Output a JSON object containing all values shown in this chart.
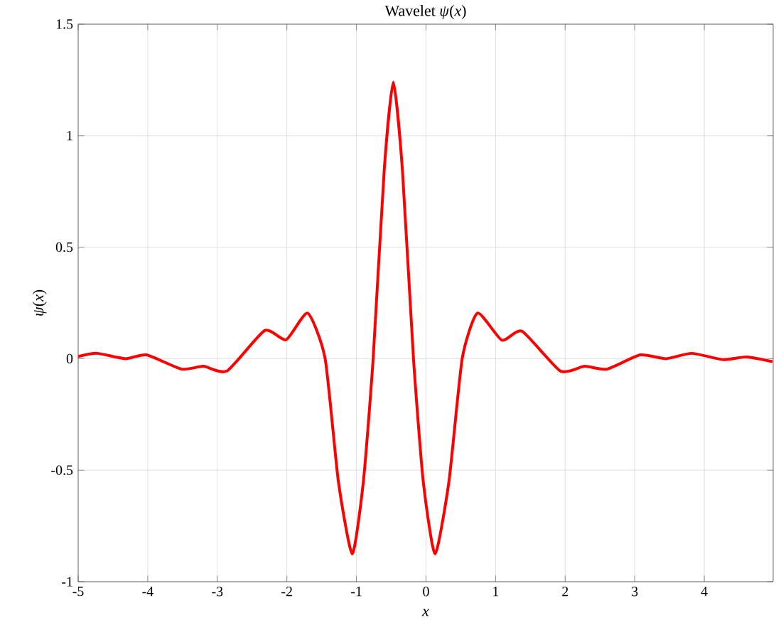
{
  "chart_data": {
    "type": "line",
    "title": "Wavelet *ψ*(*x*)",
    "xlabel": "*x*",
    "ylabel": "*ψ*(*x*)",
    "xlim": [
      -5,
      4.99
    ],
    "ylim": [
      -1,
      1.5
    ],
    "xticks": [
      -5,
      -4,
      -3,
      -2,
      -1,
      0,
      1,
      2,
      3,
      4
    ],
    "yticks": [
      -1,
      -0.5,
      0,
      0.5,
      1,
      1.5
    ],
    "grid": true,
    "marker": "none",
    "line_style": "solid",
    "x": [
      -5,
      -4.73,
      -4.32,
      -4.02,
      -3.51,
      -3.2,
      -2.86,
      -2.32,
      -2.01,
      -1.7,
      -1.45,
      -1.26,
      -1.06,
      -0.9,
      -0.76,
      -0.6,
      -0.47,
      -0.34,
      -0.18,
      -0.04,
      0.13,
      0.33,
      0.52,
      0.74,
      1.09,
      1.38,
      1.93,
      2.28,
      2.6,
      3.08,
      3.45,
      3.82,
      4.27,
      4.61,
      4.98
    ],
    "series": [
      {
        "color": "#ff0000",
        "values": [
          0.01,
          0.024,
          0.0,
          0.017,
          -0.047,
          -0.034,
          -0.055,
          0.126,
          0.085,
          0.204,
          0.0,
          -0.55,
          -0.876,
          -0.55,
          0.0,
          0.85,
          1.24,
          0.85,
          0.0,
          -0.55,
          -0.876,
          -0.55,
          0.0,
          0.204,
          0.083,
          0.123,
          -0.055,
          -0.034,
          -0.047,
          0.017,
          0.0,
          0.024,
          -0.004,
          0.008,
          -0.013
        ]
      }
    ]
  }
}
